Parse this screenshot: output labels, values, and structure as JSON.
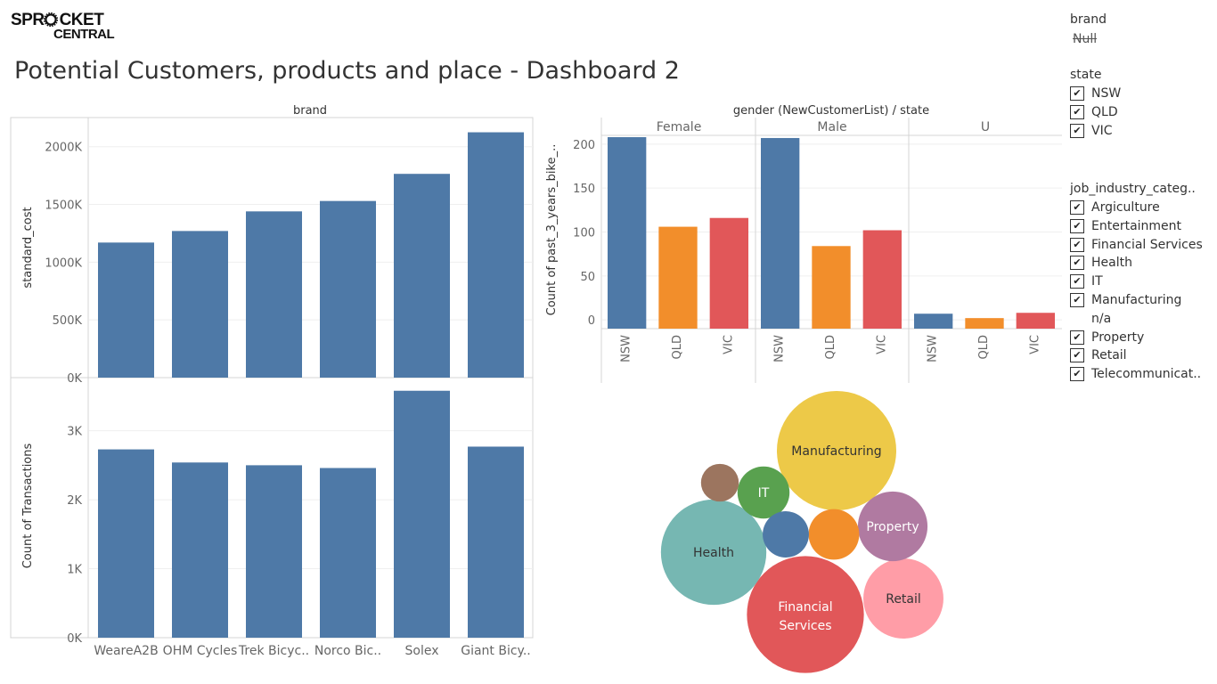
{
  "logo": {
    "line1": "SPROCKET",
    "line2": "CENTRAL"
  },
  "page_title": "Potential Customers, products and place - Dashboard 2",
  "filters": {
    "brand": {
      "title": "brand",
      "null_label": "Null"
    },
    "state": {
      "title": "state",
      "items": [
        {
          "label": "NSW",
          "checked": true
        },
        {
          "label": "QLD",
          "checked": true
        },
        {
          "label": "VIC",
          "checked": true
        }
      ]
    },
    "job_industry": {
      "title": "job_industry_categ..",
      "items": [
        {
          "label": "Argiculture",
          "checked": true
        },
        {
          "label": "Entertainment",
          "checked": true
        },
        {
          "label": "Financial Services",
          "checked": true
        },
        {
          "label": "Health",
          "checked": true
        },
        {
          "label": "IT",
          "checked": true
        },
        {
          "label": "Manufacturing",
          "checked": true
        },
        {
          "label": "n/a",
          "checked": false
        },
        {
          "label": "Property",
          "checked": true
        },
        {
          "label": "Retail",
          "checked": true
        },
        {
          "label": "Telecommunicat..",
          "checked": true
        }
      ]
    }
  },
  "chart_data": [
    {
      "type": "bar",
      "header": "brand",
      "ylabel": "standard_cost",
      "categories": [
        "WeareA2B",
        "OHM Cycles",
        "Trek Bicyc..",
        "Norco Bic..",
        "Solex",
        "Giant Bicy.."
      ],
      "values": [
        1170000,
        1270000,
        1440000,
        1530000,
        1765000,
        2125000
      ],
      "yticks": [
        0,
        500000,
        1000000,
        1500000,
        2000000
      ],
      "ytick_labels": [
        "0K",
        "500K",
        "1000K",
        "1500K",
        "2000K"
      ],
      "ylim": [
        0,
        2160000
      ],
      "color": "#4e79a7"
    },
    {
      "type": "bar",
      "ylabel": "Count of Transactions",
      "categories": [
        "WeareA2B",
        "OHM Cycles",
        "Trek Bicyc..",
        "Norco Bic..",
        "Solex",
        "Giant Bicy.."
      ],
      "values": [
        2730,
        2540,
        2500,
        2460,
        3580,
        2770
      ],
      "yticks": [
        0,
        1000,
        2000,
        3000
      ],
      "ytick_labels": [
        "0K",
        "1K",
        "2K",
        "3K"
      ],
      "ylim": [
        0,
        3680
      ],
      "color": "#4e79a7"
    },
    {
      "type": "bar",
      "header": "gender (NewCustomerList) / state",
      "ylabel": "Count of past_3_years_bike_..",
      "groups": [
        "Female",
        "Male",
        "U"
      ],
      "categories": [
        "NSW",
        "QLD",
        "VIC"
      ],
      "values": [
        [
          208,
          106,
          116
        ],
        [
          207,
          84,
          102
        ],
        [
          7,
          2,
          8
        ]
      ],
      "colors": {
        "NSW": "#4e79a7",
        "QLD": "#f28e2b",
        "VIC": "#e15759"
      },
      "yticks": [
        0,
        50,
        100,
        150,
        200
      ],
      "ylim": [
        -10,
        210
      ]
    },
    {
      "type": "bubble",
      "bubbles": [
        {
          "label": "Manufacturing",
          "value": 100,
          "color": "#edc948",
          "text_color": "#333333"
        },
        {
          "label": "Financial Services",
          "value": 96,
          "color": "#e15759",
          "text_color": "#ffffff"
        },
        {
          "label": "Health",
          "value": 78,
          "color": "#76b7b2",
          "text_color": "#333333"
        },
        {
          "label": "Retail",
          "value": 45,
          "color": "#ff9da7",
          "text_color": "#333333"
        },
        {
          "label": "Property",
          "value": 34,
          "color": "#b07aa1",
          "text_color": "#ffffff"
        },
        {
          "label": "IT",
          "value": 19,
          "color": "#59a14f",
          "text_color": "#ffffff"
        },
        {
          "label": "",
          "value": 18,
          "color": "#f28e2b",
          "text_color": "#ffffff"
        },
        {
          "label": "",
          "value": 15,
          "color": "#4e79a7",
          "text_color": "#ffffff"
        },
        {
          "label": "",
          "value": 10,
          "color": "#9c755f",
          "text_color": "#ffffff"
        }
      ]
    }
  ]
}
